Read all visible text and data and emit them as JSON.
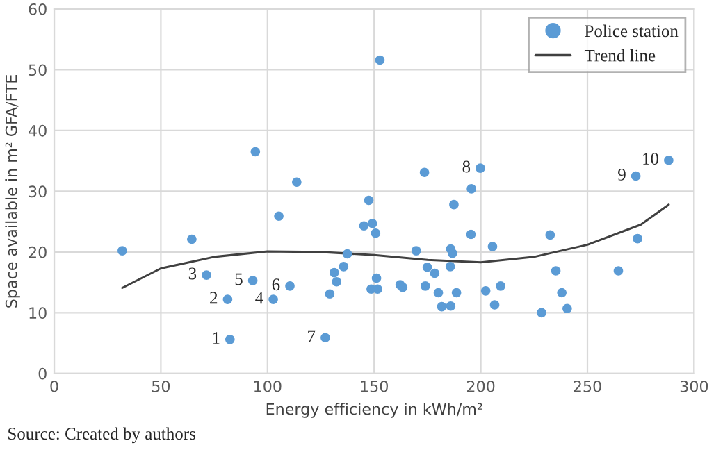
{
  "chart_data": {
    "type": "scatter",
    "xlabel": "Energy efficiency in kWh/m²",
    "ylabel": "Space available in m² GFA/FTE",
    "xlim": [
      0,
      300
    ],
    "xticks": [
      0,
      50,
      100,
      150,
      200,
      250,
      300
    ],
    "ylim": [
      0,
      60
    ],
    "yticks": [
      0,
      10,
      20,
      30,
      40,
      50,
      60
    ],
    "grid": true,
    "legend": "top right",
    "series": [
      {
        "name": "Police station",
        "marker": "circle",
        "color": "#5b9bd5",
        "x": [
          31.9,
          64.5,
          71.4,
          81.3,
          82.4,
          93.1,
          94.3,
          102.7,
          105.3,
          110.5,
          113.7,
          127.1,
          129.2,
          131.3,
          132.4,
          135.7,
          137.4,
          145.2,
          147.5,
          149.2,
          150.7,
          151.1,
          148.6,
          151.6,
          152.7,
          162.2,
          163.4,
          169.7,
          173.6,
          174.9,
          178.4,
          174.0,
          180.1,
          181.7,
          185.9,
          185.7,
          185.9,
          186.7,
          187.4,
          188.6,
          195.6,
          195.4,
          199.8,
          202.3,
          205.5,
          206.5,
          209.3,
          228.5,
          232.5,
          235.2,
          238.0,
          240.5,
          264.5,
          272.7,
          273.5,
          288.1
        ],
        "values": [
          20.2,
          22.1,
          16.2,
          12.2,
          5.6,
          15.3,
          36.5,
          12.2,
          25.9,
          14.4,
          31.5,
          5.9,
          13.1,
          16.6,
          15.1,
          17.6,
          19.7,
          24.3,
          28.5,
          24.7,
          23.1,
          15.7,
          13.9,
          13.9,
          51.6,
          14.6,
          14.2,
          20.2,
          33.1,
          17.5,
          16.5,
          14.4,
          13.3,
          11.0,
          11.1,
          17.6,
          20.5,
          19.8,
          27.8,
          13.3,
          30.4,
          22.9,
          33.8,
          13.6,
          20.9,
          11.3,
          14.4,
          10.0,
          22.8,
          16.9,
          13.3,
          10.7,
          16.9,
          32.5,
          22.2,
          35.1
        ]
      },
      {
        "name": "Trend line",
        "type": "line",
        "color": "#404040",
        "line_style": "solid",
        "x": [
          31.9,
          50,
          75,
          100,
          125,
          150,
          175,
          200,
          225,
          250,
          275,
          288.1
        ],
        "values": [
          14.1,
          17.3,
          19.2,
          20.1,
          20.0,
          19.5,
          18.7,
          18.3,
          19.2,
          21.2,
          24.5,
          27.8
        ]
      }
    ],
    "annotations": [
      {
        "text": "1",
        "x": 82.4,
        "y": 5.6
      },
      {
        "text": "2",
        "x": 81.3,
        "y": 12.2
      },
      {
        "text": "3",
        "x": 71.4,
        "y": 16.2
      },
      {
        "text": "4",
        "x": 102.7,
        "y": 12.2
      },
      {
        "text": "5",
        "x": 93.1,
        "y": 15.3
      },
      {
        "text": "6",
        "x": 110.5,
        "y": 14.4
      },
      {
        "text": "7",
        "x": 127.1,
        "y": 5.9
      },
      {
        "text": "8",
        "x": 199.8,
        "y": 33.8
      },
      {
        "text": "9",
        "x": 272.7,
        "y": 32.5
      },
      {
        "text": "10",
        "x": 288.1,
        "y": 35.1
      },
      "Source: Created by authors"
    ]
  }
}
